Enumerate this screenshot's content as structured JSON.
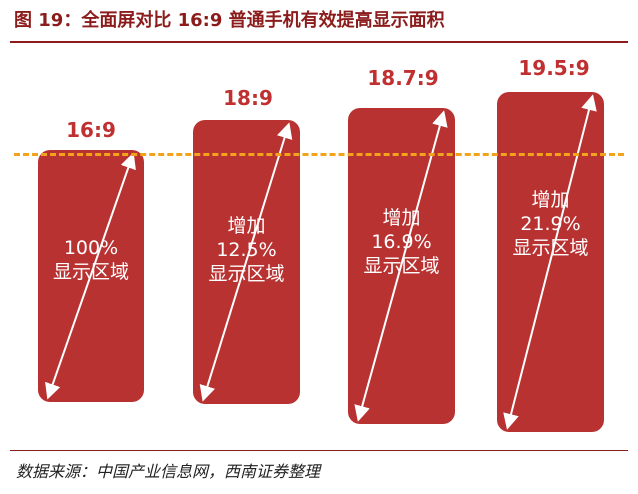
{
  "title": "图 19：全面屏对比 16:9 普通手机有效提高显示面积",
  "phones": [
    {
      "ratio": "16:9",
      "lines": [
        "100%",
        "显示区域"
      ]
    },
    {
      "ratio": "18:9",
      "lines": [
        "增加",
        "12.5%",
        "显示区域"
      ]
    },
    {
      "ratio": "18.7:9",
      "lines": [
        "增加",
        "16.9%",
        "显示区域"
      ]
    },
    {
      "ratio": "19.5:9",
      "lines": [
        "增加",
        "21.9%",
        "显示区域"
      ]
    }
  ],
  "source": "数据来源：中国产业信息网，西南证券整理",
  "colors": {
    "phone_fill": "#b83232",
    "ratio_label": "#c03030",
    "baseline": "#f2a31a",
    "title": "#8c1c1c"
  }
}
